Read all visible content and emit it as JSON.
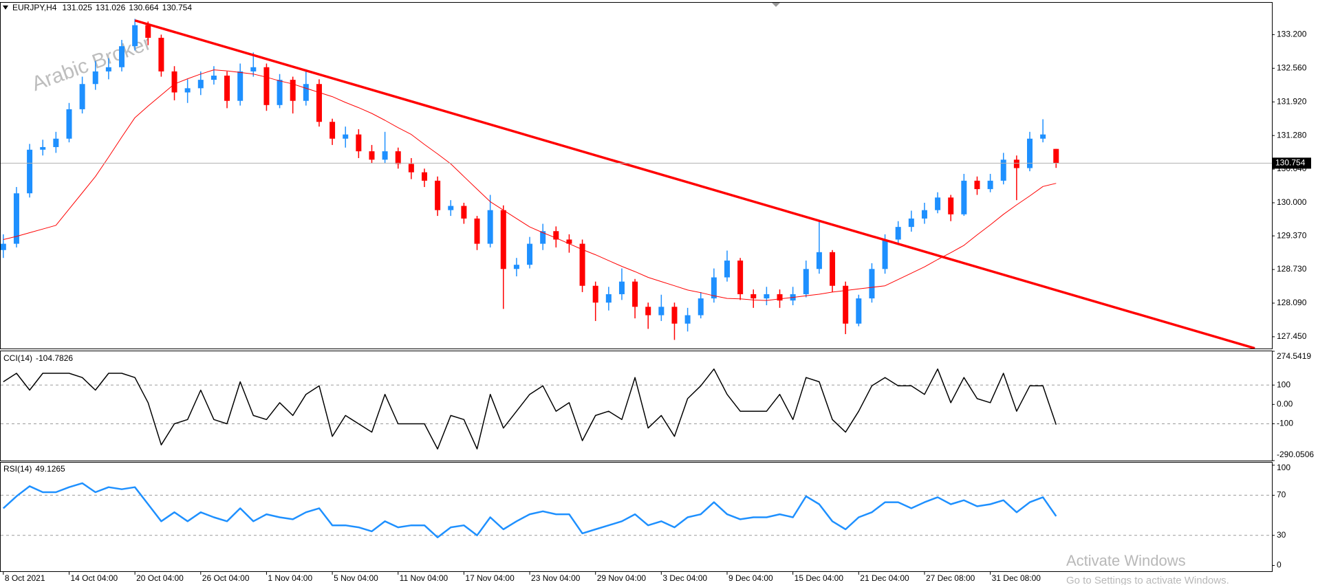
{
  "chart_data": [
    {
      "type": "candlestick",
      "symbol": "EURJPY,H4",
      "watermark": "Arabic Broker",
      "x": [
        "8 Oct 2021",
        null,
        null,
        null,
        null,
        "14 Oct 04:00",
        null,
        null,
        null,
        null,
        "20 Oct 04:00",
        null,
        null,
        null,
        null,
        "26 Oct 04:00",
        null,
        null,
        null,
        null,
        "1 Nov 04:00",
        null,
        null,
        null,
        null,
        "5 Nov 04:00",
        null,
        null,
        null,
        null,
        "11 Nov 04:00",
        null,
        null,
        null,
        null,
        "17 Nov 04:00",
        null,
        null,
        null,
        null,
        "23 Nov 04:00",
        null,
        null,
        null,
        null,
        "29 Nov 04:00",
        null,
        null,
        null,
        null,
        "3 Dec 04:00",
        null,
        null,
        null,
        null,
        "9 Dec 04:00",
        null,
        null,
        null,
        null,
        "15 Dec 04:00",
        null,
        null,
        null,
        null,
        "21 Dec 04:00",
        null,
        null,
        null,
        null,
        "27 Dec 08:00",
        null,
        null,
        null,
        null,
        "31 Dec 08:00",
        null,
        null,
        null,
        null,
        null
      ],
      "open": [
        129.1,
        129.22,
        130.18,
        131.01,
        131.06,
        131.22,
        131.78,
        132.26,
        132.5,
        132.58,
        132.98,
        133.38,
        133.14,
        132.5,
        132.1,
        132.18,
        132.34,
        132.42,
        131.94,
        132.5,
        132.58,
        131.86,
        132.34,
        131.94,
        132.26,
        131.54,
        131.22,
        131.3,
        130.98,
        130.82,
        130.98,
        130.74,
        130.58,
        130.42,
        129.86,
        129.94,
        129.7,
        129.22,
        129.86,
        128.74,
        128.82,
        129.22,
        129.46,
        129.3,
        129.22,
        128.42,
        128.1,
        128.26,
        128.5,
        128.02,
        127.86,
        128.02,
        127.7,
        127.86,
        128.18,
        128.58,
        128.9,
        128.26,
        128.18,
        128.26,
        128.14,
        128.26,
        128.74,
        129.06,
        128.42,
        127.7,
        128.18,
        128.74,
        129.3,
        129.54,
        129.7,
        129.86,
        130.1,
        129.78,
        130.42,
        130.26,
        130.42,
        130.82,
        130.66,
        131.22,
        131.025
      ],
      "high": [
        129.4,
        130.3,
        131.12,
        131.2,
        131.35,
        131.9,
        132.4,
        132.7,
        132.75,
        133.1,
        133.5,
        133.45,
        133.2,
        132.6,
        132.35,
        132.5,
        132.6,
        132.5,
        132.65,
        132.86,
        132.65,
        132.45,
        132.4,
        132.54,
        132.35,
        131.6,
        131.45,
        131.4,
        131.1,
        131.35,
        131.05,
        130.85,
        130.65,
        130.5,
        130.05,
        130.0,
        129.75,
        130.15,
        129.95,
        128.95,
        129.35,
        129.6,
        129.55,
        129.4,
        129.3,
        128.5,
        128.4,
        128.75,
        128.55,
        128.1,
        128.25,
        128.1,
        128.0,
        128.3,
        128.75,
        129.09,
        128.95,
        128.35,
        128.4,
        128.35,
        128.4,
        128.9,
        129.67,
        129.1,
        128.5,
        128.25,
        128.85,
        129.4,
        129.65,
        129.85,
        130.0,
        130.2,
        130.15,
        130.55,
        130.5,
        130.55,
        130.95,
        130.9,
        131.35,
        131.59,
        131.026
      ],
      "low": [
        128.95,
        129.15,
        130.1,
        130.9,
        130.95,
        131.15,
        131.7,
        132.15,
        132.35,
        132.5,
        132.9,
        133.0,
        132.4,
        131.95,
        131.9,
        132.05,
        132.25,
        131.8,
        131.85,
        132.4,
        131.75,
        131.8,
        131.7,
        131.85,
        131.45,
        131.1,
        131.05,
        130.85,
        130.75,
        130.75,
        130.65,
        130.45,
        130.3,
        129.75,
        129.75,
        129.6,
        129.1,
        129.15,
        127.98,
        128.6,
        128.75,
        129.1,
        129.15,
        129.05,
        128.3,
        127.75,
        127.95,
        128.15,
        127.8,
        127.6,
        127.75,
        127.39,
        127.55,
        127.8,
        128.1,
        128.5,
        128.15,
        128.0,
        128.05,
        128.0,
        128.05,
        128.2,
        128.65,
        128.3,
        127.5,
        127.65,
        128.1,
        128.65,
        129.2,
        129.45,
        129.6,
        129.8,
        129.65,
        129.75,
        130.15,
        130.2,
        130.35,
        130.05,
        130.6,
        131.15,
        130.664
      ],
      "close": [
        129.22,
        130.18,
        131.01,
        131.06,
        131.22,
        131.78,
        132.26,
        132.5,
        132.58,
        132.98,
        133.38,
        133.14,
        132.5,
        132.1,
        132.18,
        132.34,
        132.42,
        131.94,
        132.5,
        132.58,
        131.86,
        132.34,
        131.94,
        132.26,
        131.54,
        131.22,
        131.3,
        130.98,
        130.82,
        130.98,
        130.74,
        130.58,
        130.42,
        129.86,
        129.94,
        129.7,
        129.22,
        129.86,
        128.74,
        128.82,
        129.22,
        129.46,
        129.3,
        129.22,
        128.42,
        128.1,
        128.26,
        128.5,
        128.02,
        127.86,
        128.02,
        127.7,
        127.86,
        128.18,
        128.58,
        128.9,
        128.26,
        128.18,
        128.26,
        128.14,
        128.26,
        128.74,
        129.06,
        128.42,
        127.7,
        128.18,
        128.74,
        129.3,
        129.54,
        129.7,
        129.86,
        130.1,
        129.78,
        130.42,
        130.26,
        130.42,
        130.82,
        130.66,
        131.22,
        131.3,
        130.754
      ],
      "up_color": "#1e90ff",
      "down_color": "#ff0000",
      "ma": {
        "color": "#ff0000",
        "values": [
          129.3,
          129.36,
          129.43,
          129.5,
          129.57,
          129.88,
          130.19,
          130.5,
          130.87,
          131.25,
          131.62,
          131.84,
          132.05,
          132.26,
          132.36,
          132.45,
          132.53,
          132.51,
          132.48,
          132.45,
          132.39,
          132.32,
          132.26,
          132.18,
          132.1,
          132.02,
          131.91,
          131.81,
          131.7,
          131.57,
          131.43,
          131.3,
          131.11,
          130.93,
          130.74,
          130.5,
          130.26,
          130.02,
          129.86,
          129.7,
          129.54,
          129.43,
          129.33,
          129.22,
          129.11,
          129.01,
          128.9,
          128.79,
          128.69,
          128.58,
          128.5,
          128.42,
          128.34,
          128.29,
          128.23,
          128.18,
          128.17,
          128.15,
          128.14,
          128.17,
          128.2,
          128.23,
          128.26,
          128.3,
          128.33,
          128.36,
          128.39,
          128.42,
          128.54,
          128.66,
          128.78,
          128.92,
          129.05,
          129.19,
          129.39,
          129.58,
          129.78,
          129.96,
          130.13,
          130.31,
          130.37
        ]
      },
      "trendline": {
        "color": "#ff0000",
        "x": [
          10,
          95.1
        ],
        "values": [
          133.47,
          127.23
        ]
      },
      "xlim": [
        -0.2,
        96.4
      ],
      "ylim": [
        127.226,
        133.807
      ],
      "yticks": [
        {
          "value": 127.45,
          "label": "127.450"
        },
        {
          "value": 128.09,
          "label": "128.090"
        },
        {
          "value": 128.73,
          "label": "128.730"
        },
        {
          "value": 129.37,
          "label": "129.370"
        },
        {
          "value": 130,
          "label": "130.000"
        },
        {
          "value": 130.64,
          "label": "130.640"
        },
        {
          "value": 131.28,
          "label": "131.280"
        },
        {
          "value": 131.92,
          "label": "131.920"
        },
        {
          "value": 132.56,
          "label": "132.560"
        },
        {
          "value": 133.2,
          "label": "133.200"
        }
      ]
    },
    {
      "type": "line",
      "title": "CCI(14)",
      "color": "#000000",
      "values": [
        117,
        161,
        74,
        161,
        161,
        161,
        139,
        74,
        161,
        161,
        139,
        9,
        -209,
        -100,
        -78,
        74,
        -78,
        -100,
        117,
        -57,
        -78,
        9,
        -57,
        52,
        96,
        -165,
        -57,
        -100,
        -143,
        52,
        -100,
        -100,
        -100,
        -230,
        -57,
        -78,
        -230,
        52,
        -122,
        -35,
        52,
        96,
        -35,
        9,
        -187,
        -57,
        -35,
        -78,
        139,
        -122,
        -57,
        -165,
        30,
        96,
        183,
        52,
        -35,
        -35,
        -35,
        52,
        -78,
        139,
        117,
        -78,
        -143,
        -35,
        96,
        139,
        96,
        96,
        52,
        183,
        9,
        139,
        30,
        9,
        161,
        -35,
        96,
        96,
        -104.7826
      ],
      "xlim": [
        -0.2,
        96.4
      ],
      "ylim": [
        -290.0506,
        274.5419
      ],
      "yticks": [
        274.5419,
        100,
        {
          "value": 0,
          "label": "0.00"
        },
        -100,
        -290.0506
      ],
      "levels": [
        100,
        -100
      ]
    },
    {
      "type": "line",
      "title": "RSI(14)",
      "color": "#1e90ff",
      "values": [
        57,
        69,
        79,
        73,
        73,
        78,
        82,
        73,
        78,
        76,
        78,
        61,
        44,
        53,
        44,
        53,
        48,
        44,
        57,
        44,
        51,
        48,
        46,
        53,
        57,
        40,
        40,
        38,
        34,
        44,
        38,
        40,
        40,
        28,
        38,
        40,
        30,
        48,
        36,
        44,
        51,
        54,
        51,
        51,
        32,
        36,
        40,
        44,
        51,
        40,
        44,
        38,
        48,
        51,
        63,
        51,
        46,
        48,
        48,
        51,
        48,
        69,
        61,
        44,
        36,
        48,
        53,
        63,
        63,
        57,
        63,
        68,
        61,
        65,
        59,
        61,
        65,
        53,
        63,
        68,
        49.1265
      ],
      "xlim": [
        -0.2,
        96.4
      ],
      "ylim": [
        -5.8,
        102.5
      ],
      "yticks": [
        100,
        70,
        30,
        0
      ],
      "levels": [
        70,
        30
      ]
    }
  ],
  "overlay": {
    "title": "Activate Windows",
    "text": "Go to Settings to activate Windows."
  }
}
